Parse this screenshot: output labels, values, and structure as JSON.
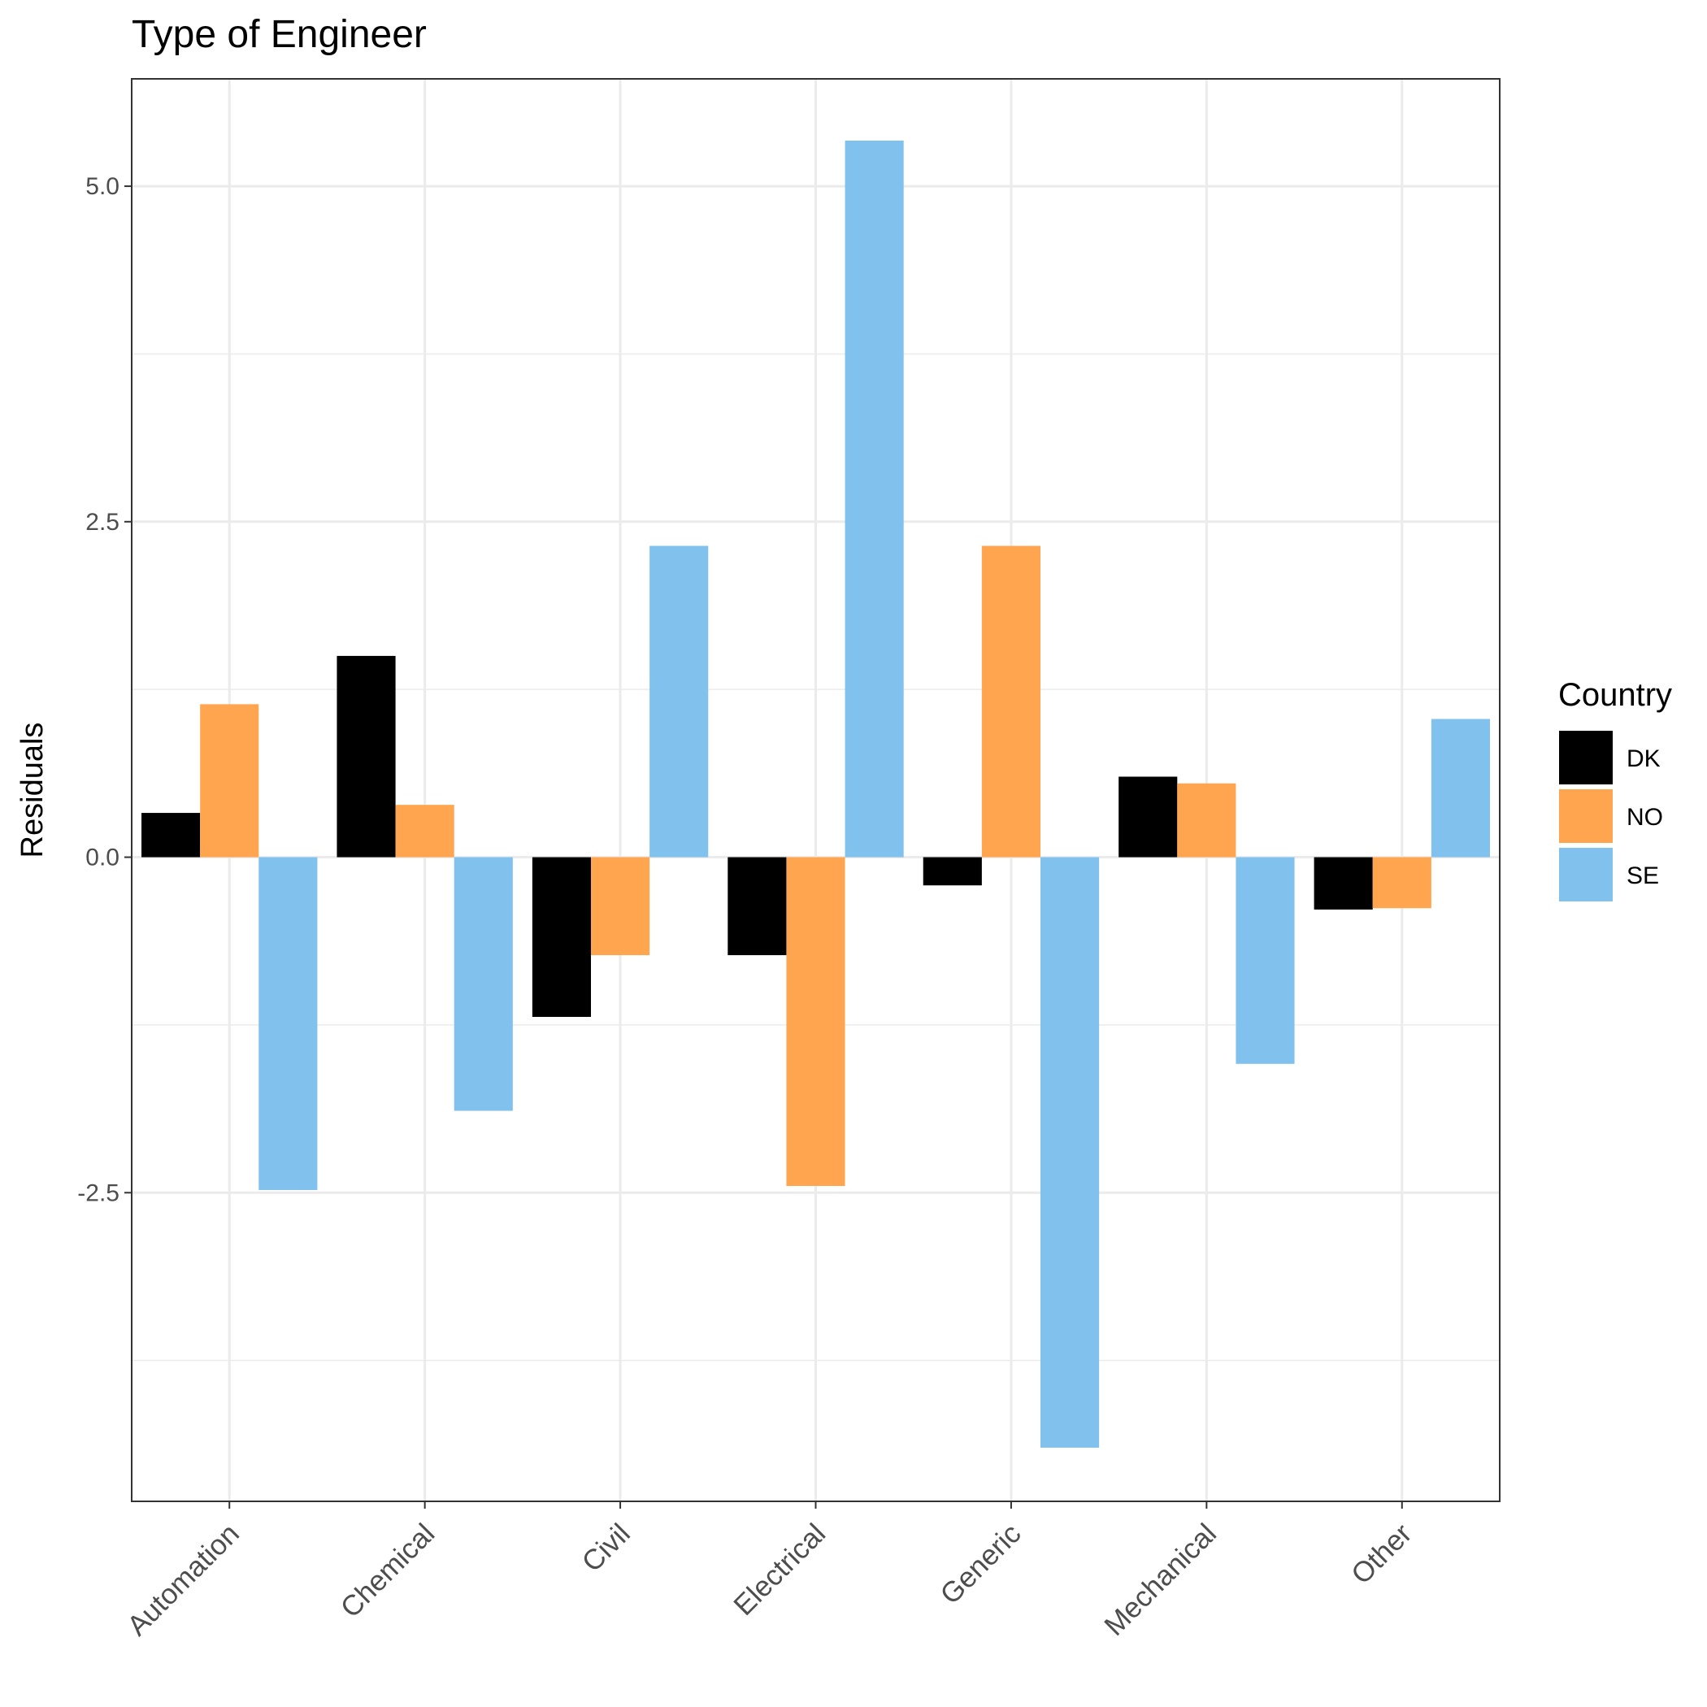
{
  "chart_data": {
    "type": "bar",
    "title": "Type of Engineer",
    "xlabel": "",
    "ylabel": "Residuals",
    "categories": [
      "Automation",
      "Chemical",
      "Civil",
      "Electrical",
      "Generic",
      "Mechanical",
      "Other"
    ],
    "series": [
      {
        "name": "DK",
        "color": "#000000",
        "values": [
          0.33,
          1.5,
          -1.19,
          -0.73,
          -0.21,
          0.6,
          -0.39
        ]
      },
      {
        "name": "NO",
        "color": "#FFA54F",
        "values": [
          1.14,
          0.39,
          -0.73,
          -2.45,
          2.32,
          0.55,
          -0.38
        ]
      },
      {
        "name": "SE",
        "color": "#80C1EE",
        "values": [
          -2.48,
          -1.89,
          2.32,
          5.34,
          -4.4,
          -1.54,
          1.03
        ]
      }
    ],
    "ylim": [
      -4.8,
      5.8
    ],
    "yticks": [
      "-2.5",
      "0.0",
      "2.5",
      "5.0"
    ],
    "grid": true,
    "legend": {
      "title": "Country",
      "position": "right"
    }
  }
}
